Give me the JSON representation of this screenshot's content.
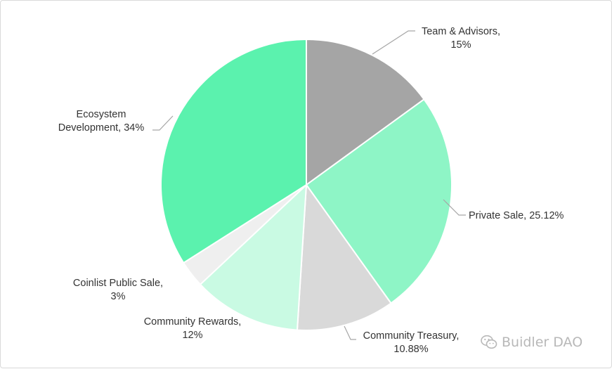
{
  "chart_data": {
    "type": "pie",
    "title": "",
    "start_angle_deg": 0,
    "direction": "clockwise",
    "slices": [
      {
        "label_lines": [
          "Team & Advisors,",
          "15%"
        ],
        "value": 15,
        "color": "#a5a5a5"
      },
      {
        "label_lines": [
          "Private Sale, 25.12%"
        ],
        "value": 25.12,
        "color": "#8ef5c6"
      },
      {
        "label_lines": [
          "Community Treasury,",
          "10.88%"
        ],
        "value": 10.88,
        "color": "#d9d9d9"
      },
      {
        "label_lines": [
          "Community Rewards,",
          "12%"
        ],
        "value": 12,
        "color": "#c9fae3"
      },
      {
        "label_lines": [
          "Coinlist Public Sale,",
          "3%"
        ],
        "value": 3,
        "color": "#efefef"
      },
      {
        "label_lines": [
          "Ecosystem",
          "Development, 34%"
        ],
        "value": 34,
        "color": "#5bf2ae"
      }
    ]
  },
  "watermark": {
    "text": "Buidler DAO",
    "icon": "wechat-icon",
    "color": "#b8b8b8"
  }
}
